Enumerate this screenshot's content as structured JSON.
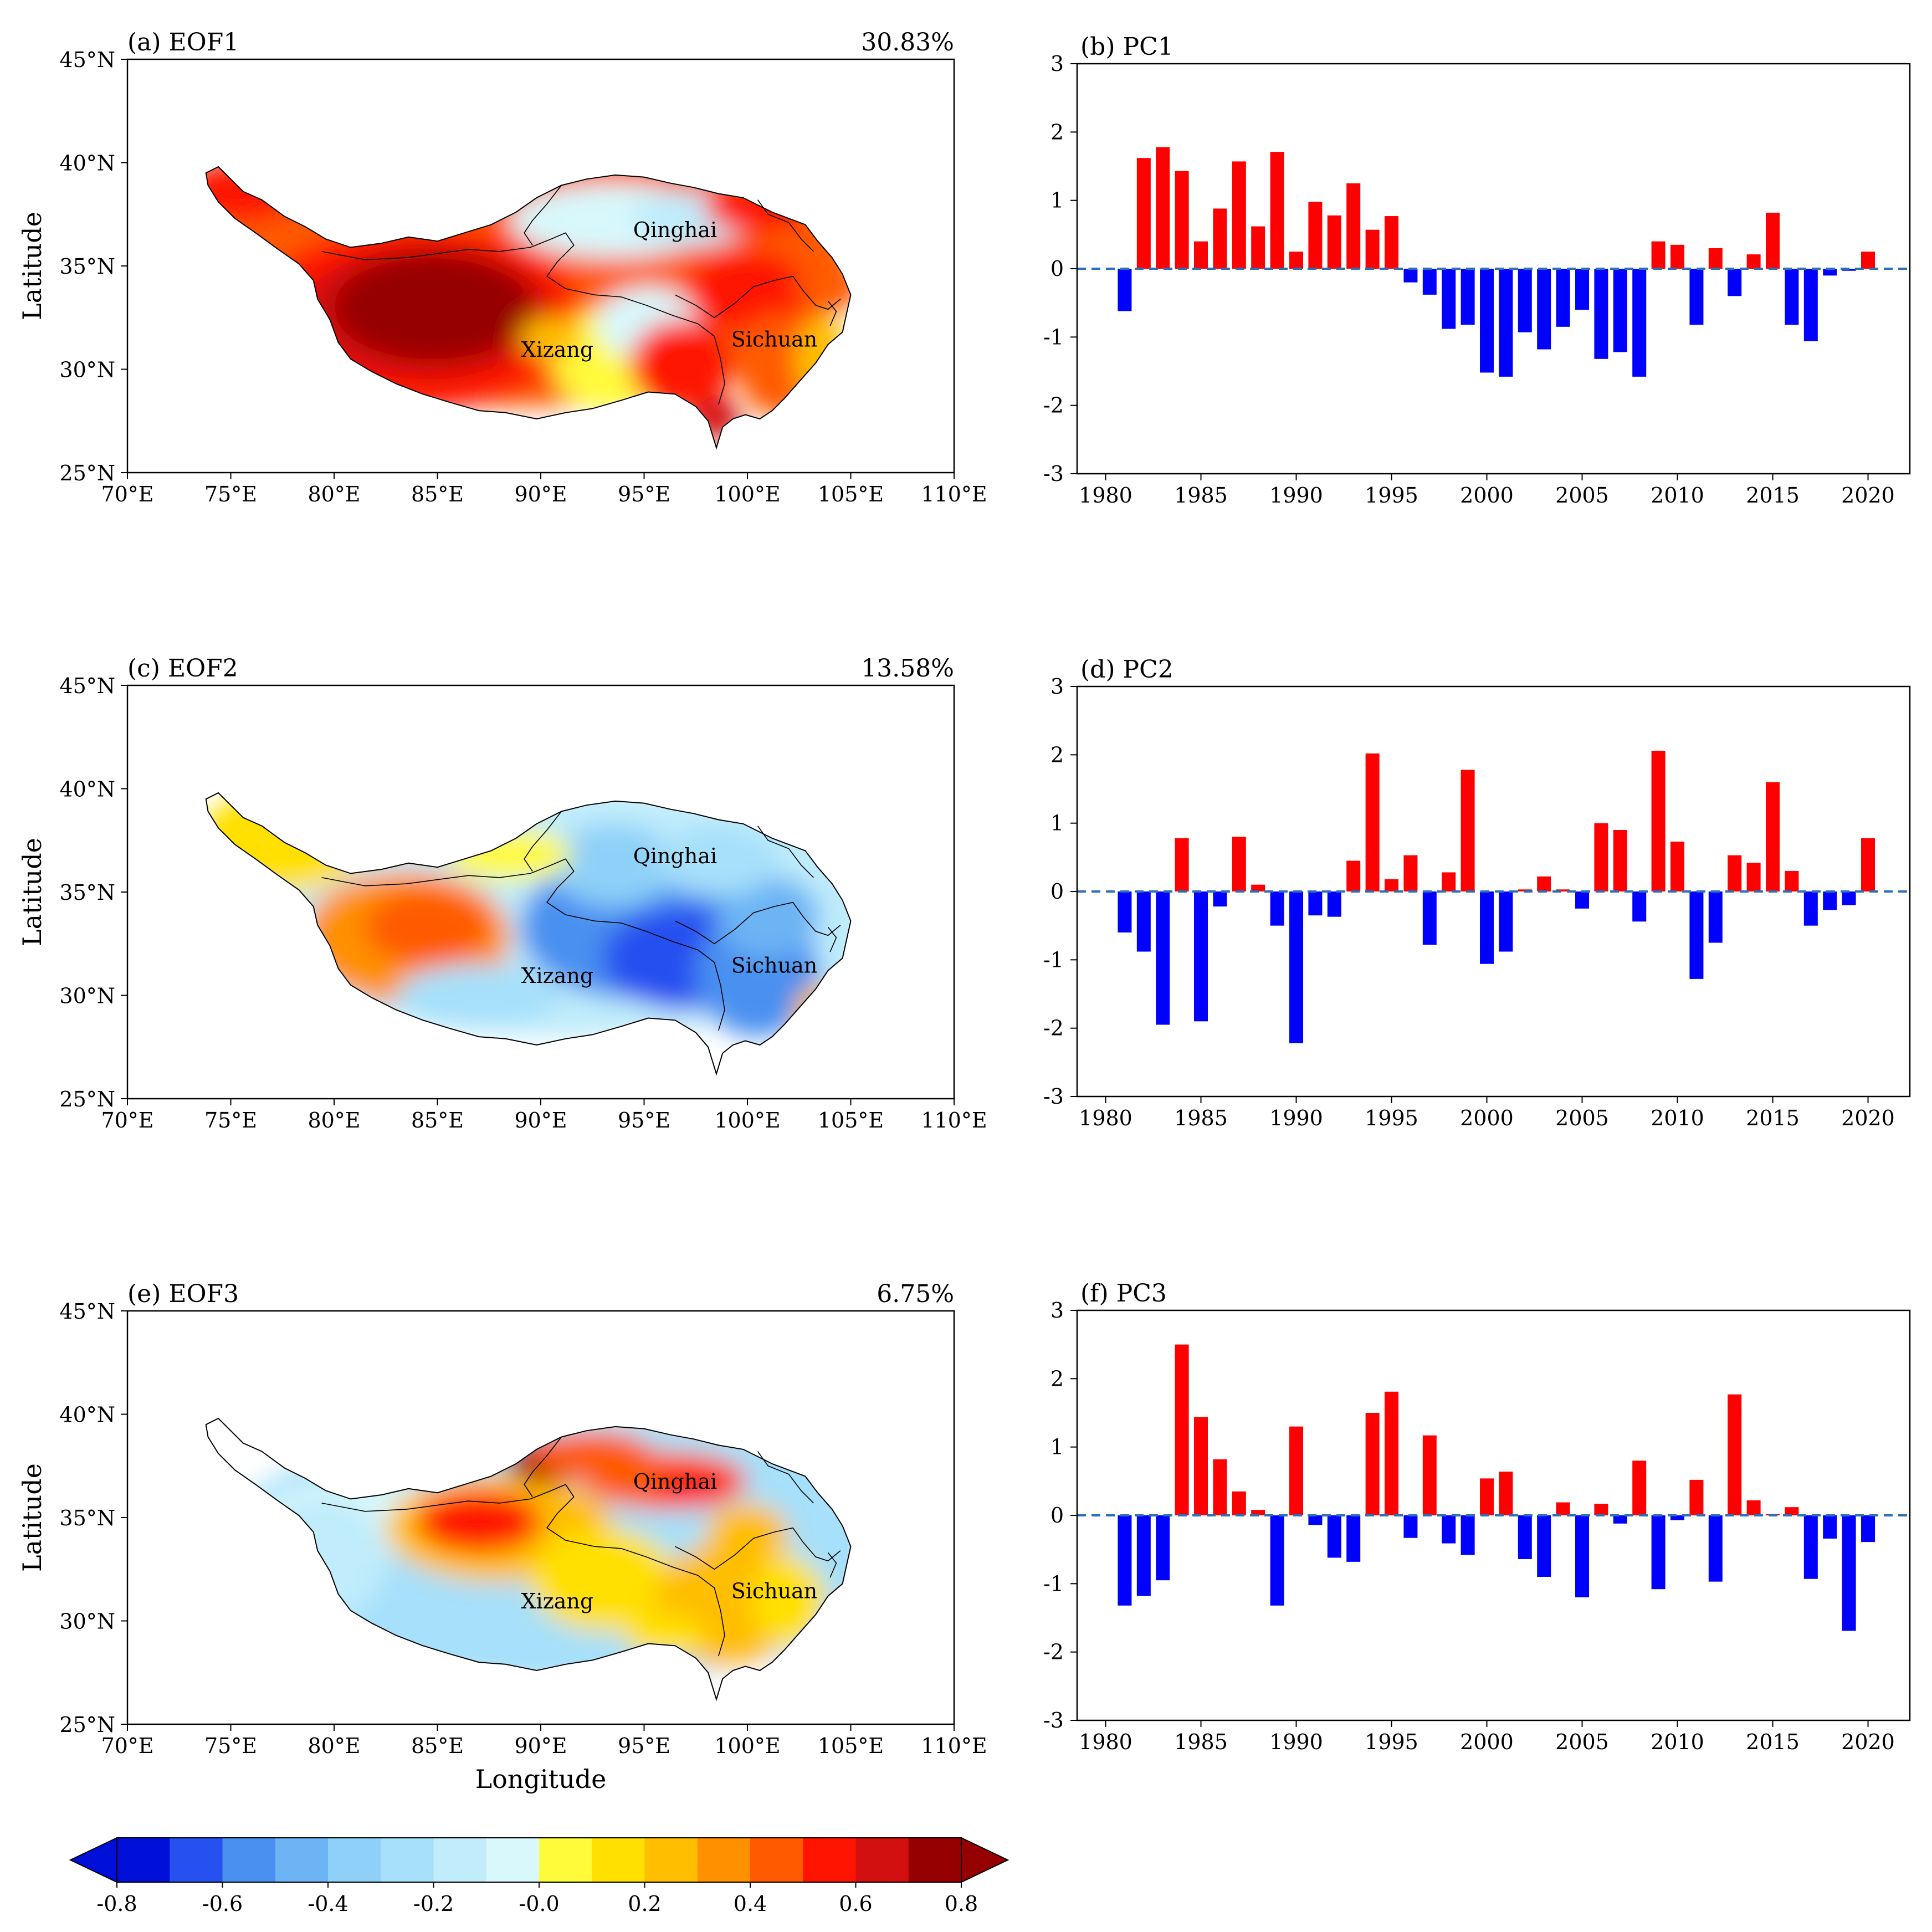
{
  "figure": {
    "panel_labels": {
      "map": [
        "(a) EOF1",
        "(c) EOF2",
        "(e) EOF3"
      ],
      "pc": [
        "(b) PC1",
        "(d) PC2",
        "(f) PC3"
      ]
    },
    "variance": [
      "30.83%",
      "13.58%",
      "6.75%"
    ],
    "region_labels": [
      "Qinghai",
      "Sichuan",
      "Xizang"
    ],
    "map_axes": {
      "ylabel": "Latitude",
      "xlabel": "Longitude",
      "lon_ticks": [
        "70°E",
        "75°E",
        "80°E",
        "85°E",
        "90°E",
        "95°E",
        "100°E",
        "105°E",
        "110°E"
      ],
      "lat_ticks": [
        "45°N",
        "40°N",
        "35°N",
        "30°N",
        "25°N"
      ]
    },
    "pc_axes": {
      "x_ticks": [
        "1980",
        "1985",
        "1990",
        "1995",
        "2000",
        "2005",
        "2010",
        "2015",
        "2020"
      ],
      "y_ticks": [
        "3",
        "2",
        "1",
        "0",
        "-1",
        "-2",
        "-3"
      ]
    },
    "colorbar": {
      "ticks": [
        "-0.8",
        "-0.6",
        "-0.4",
        "-0.2",
        "-0.0",
        "0.2",
        "0.4",
        "0.6",
        "0.8"
      ],
      "colors": [
        "#0010d8",
        "#2650f0",
        "#4a90f0",
        "#6cb4f4",
        "#8ed0f8",
        "#a6e0fa",
        "#c0ecfb",
        "#d8f8fc",
        "#fffa3a",
        "#ffe000",
        "#ffbe00",
        "#ff9000",
        "#ff5a00",
        "#ff1400",
        "#d21010",
        "#960000"
      ]
    }
  },
  "chart_data": [
    {
      "type": "map",
      "title": "(a) EOF1",
      "variance": "30.83%",
      "xlabel": "",
      "ylabel": "Latitude",
      "lon_range": [
        70,
        110
      ],
      "lat_range": [
        25,
        45
      ],
      "pattern": "positive loadings over most of the plateau; maximum (>0.8) over western Xizang"
    },
    {
      "type": "bar",
      "title": "(b) PC1",
      "x": [
        1981,
        1982,
        1983,
        1984,
        1985,
        1986,
        1987,
        1988,
        1989,
        1990,
        1991,
        1992,
        1993,
        1994,
        1995,
        1996,
        1997,
        1998,
        1999,
        2000,
        2001,
        2002,
        2003,
        2004,
        2005,
        2006,
        2007,
        2008,
        2009,
        2010,
        2011,
        2012,
        2013,
        2014,
        2015,
        2016,
        2017,
        2018,
        2019,
        2020
      ],
      "values": [
        -0.62,
        1.62,
        1.78,
        1.43,
        0.4,
        0.88,
        1.57,
        0.62,
        1.71,
        0.25,
        0.98,
        0.78,
        1.25,
        0.57,
        0.77,
        -0.2,
        -0.38,
        -0.88,
        -0.82,
        -1.52,
        -1.58,
        -0.93,
        -1.18,
        -0.85,
        -0.6,
        -1.32,
        -1.22,
        -1.58,
        0.4,
        0.35,
        -0.82,
        0.3,
        -0.4,
        0.21,
        0.82,
        -0.82,
        -1.06,
        -0.1,
        -0.03,
        0.25
      ],
      "ylim": [
        -3,
        3
      ],
      "reference_line": 0
    },
    {
      "type": "map",
      "title": "(c) EOF2",
      "variance": "13.58%",
      "xlabel": "",
      "ylabel": "Latitude",
      "lon_range": [
        70,
        110
      ],
      "lat_range": [
        25,
        45
      ],
      "pattern": "positive loadings over western plateau, negative loadings over eastern plateau"
    },
    {
      "type": "bar",
      "title": "(d) PC2",
      "x": [
        1981,
        1982,
        1983,
        1984,
        1985,
        1986,
        1987,
        1988,
        1989,
        1990,
        1991,
        1992,
        1993,
        1994,
        1995,
        1996,
        1997,
        1998,
        1999,
        2000,
        2001,
        2002,
        2003,
        2004,
        2005,
        2006,
        2007,
        2008,
        2009,
        2010,
        2011,
        2012,
        2013,
        2014,
        2015,
        2016,
        2017,
        2018,
        2019,
        2020
      ],
      "values": [
        -0.6,
        -0.88,
        -1.95,
        0.78,
        -1.9,
        -0.22,
        0.8,
        0.1,
        -0.5,
        -2.22,
        -0.35,
        -0.37,
        0.45,
        2.02,
        0.18,
        0.53,
        -0.78,
        0.28,
        1.78,
        -1.06,
        -0.88,
        0.03,
        0.22,
        0.03,
        -0.25,
        1.0,
        0.9,
        -0.44,
        2.06,
        0.73,
        -1.28,
        -0.75,
        0.53,
        0.42,
        1.6,
        0.3,
        -0.5,
        -0.27,
        -0.2,
        0.78
      ],
      "ylim": [
        -3,
        3
      ],
      "reference_line": 0
    },
    {
      "type": "map",
      "title": "(e) EOF3",
      "variance": "6.75%",
      "xlabel": "Longitude",
      "ylabel": "Latitude",
      "lon_range": [
        70,
        110
      ],
      "lat_range": [
        25,
        45
      ],
      "pattern": "positive loadings over central and northeastern plateau, negative loadings along western and southern margins"
    },
    {
      "type": "bar",
      "title": "(f) PC3",
      "x": [
        1981,
        1982,
        1983,
        1984,
        1985,
        1986,
        1987,
        1988,
        1989,
        1990,
        1991,
        1992,
        1993,
        1994,
        1995,
        1996,
        1997,
        1998,
        1999,
        2000,
        2001,
        2002,
        2003,
        2004,
        2005,
        2006,
        2007,
        2008,
        2009,
        2010,
        2011,
        2012,
        2013,
        2014,
        2015,
        2016,
        2017,
        2018,
        2019,
        2020
      ],
      "values": [
        -1.32,
        -1.18,
        -0.95,
        2.5,
        1.44,
        0.82,
        0.35,
        0.08,
        -1.32,
        1.3,
        -0.14,
        -0.62,
        -0.68,
        1.5,
        1.81,
        -0.33,
        1.17,
        -0.41,
        -0.58,
        0.54,
        0.64,
        -0.64,
        -0.9,
        0.19,
        -1.2,
        0.17,
        -0.12,
        0.8,
        -1.08,
        -0.07,
        0.52,
        -0.97,
        1.77,
        0.22,
        0.02,
        0.12,
        -0.93,
        -0.34,
        -1.69,
        -0.39
      ],
      "ylim": [
        -3,
        3
      ],
      "reference_line": 0
    },
    {
      "type": "colorbar",
      "range": [
        -0.8,
        0.8
      ],
      "step": 0.1,
      "extend": "both"
    }
  ]
}
